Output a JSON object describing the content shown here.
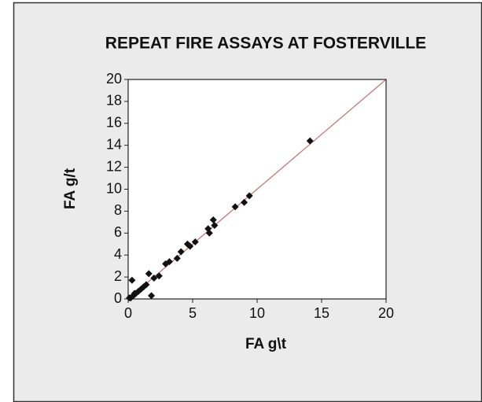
{
  "chart_data": {
    "type": "scatter",
    "title": "REPEAT FIRE ASSAYS AT FOSTERVILLE",
    "x_label": "FA g\\t",
    "y_label": "FA g/t",
    "x": [
      14.1,
      9.4,
      9.0,
      8.3,
      6.6,
      6.7,
      6.3,
      6.2,
      5.2,
      4.8,
      4.6,
      4.1,
      3.8,
      3.2,
      2.9,
      2.4,
      2.0,
      1.6,
      1.8,
      0.3,
      0.1,
      0.2,
      0.4,
      0.5,
      0.6,
      0.8,
      1.0,
      1.2,
      1.4
    ],
    "values": [
      14.4,
      9.4,
      8.8,
      8.4,
      7.2,
      6.7,
      6.0,
      6.4,
      5.2,
      4.8,
      5.0,
      4.3,
      3.7,
      3.4,
      3.2,
      2.1,
      1.9,
      2.3,
      0.3,
      1.7,
      0.1,
      0.1,
      0.3,
      0.5,
      0.5,
      0.7,
      0.9,
      1.1,
      1.3
    ],
    "color": "#111111",
    "identity_line": true,
    "identity_line_color": "#c47878",
    "xlim": [
      0,
      20
    ],
    "xticks": [
      0,
      5,
      10,
      15,
      20
    ],
    "ylim": [
      0,
      20
    ],
    "yticks": [
      0,
      2,
      4,
      6,
      8,
      10,
      12,
      14,
      16,
      18,
      20
    ]
  }
}
